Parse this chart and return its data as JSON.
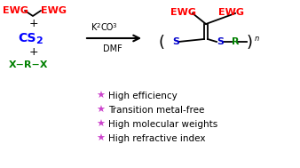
{
  "bg_color": "#ffffff",
  "red": "#ff0000",
  "blue": "#0000ff",
  "green": "#008000",
  "black": "#000000",
  "s_blue": "#0000cc",
  "purple": "#cc44cc",
  "bullet_points": [
    "High efficiency",
    "Transition metal-free",
    "High molecular weights",
    "High refractive index"
  ],
  "figsize": [
    3.38,
    1.89
  ],
  "dpi": 100
}
